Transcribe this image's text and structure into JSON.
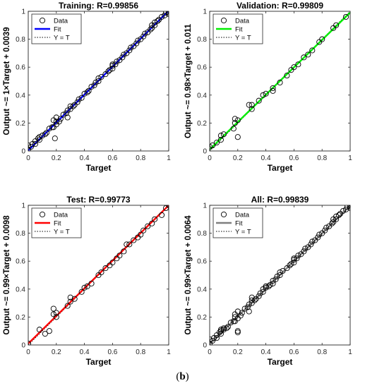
{
  "figure_label": {
    "open": "(",
    "letter": "b",
    "close": ")"
  },
  "chart_data": [
    {
      "type": "scatter",
      "title": "Training: R=0.99856",
      "xlabel": "Target",
      "ylabel": "Output ~= 1×Target + 0.0039",
      "xlim": [
        0,
        1
      ],
      "ylim": [
        0,
        1
      ],
      "xticks": [
        "0",
        "0.2",
        "0.4",
        "0.6",
        "0.8",
        "1"
      ],
      "yticks": [
        "0",
        "0.2",
        "0.4",
        "0.6",
        "0.8",
        "1"
      ],
      "legend": {
        "position": "top-left",
        "entries": [
          "Data",
          "Fit",
          "Y = T"
        ]
      },
      "fit_color": "#0000ff",
      "fit": {
        "slope": 1.0,
        "intercept": 0.0039
      },
      "series": [
        {
          "name": "Data",
          "x": [
            0,
            0,
            0.02,
            0.03,
            0.05,
            0.05,
            0.07,
            0.08,
            0.08,
            0.1,
            0.12,
            0.13,
            0.15,
            0.17,
            0.18,
            0.18,
            0.19,
            0.2,
            0.2,
            0.2,
            0.22,
            0.23,
            0.25,
            0.27,
            0.28,
            0.28,
            0.3,
            0.3,
            0.32,
            0.33,
            0.35,
            0.36,
            0.38,
            0.4,
            0.42,
            0.43,
            0.45,
            0.47,
            0.48,
            0.5,
            0.5,
            0.52,
            0.55,
            0.57,
            0.58,
            0.6,
            0.6,
            0.6,
            0.62,
            0.63,
            0.65,
            0.67,
            0.68,
            0.7,
            0.72,
            0.73,
            0.75,
            0.77,
            0.78,
            0.8,
            0.82,
            0.83,
            0.85,
            0.87,
            0.88,
            0.88,
            0.9,
            0.9,
            0.92,
            0.93,
            0.95,
            0.97,
            0.98,
            1,
            1,
            1
          ],
          "y": [
            0.01,
            0.04,
            0.03,
            0.05,
            0.05,
            0.07,
            0.09,
            0.08,
            0.1,
            0.11,
            0.12,
            0.13,
            0.16,
            0.17,
            0.17,
            0.22,
            0.09,
            0.19,
            0.21,
            0.24,
            0.21,
            0.23,
            0.26,
            0.27,
            0.29,
            0.24,
            0.3,
            0.32,
            0.32,
            0.33,
            0.35,
            0.37,
            0.38,
            0.41,
            0.42,
            0.43,
            0.46,
            0.47,
            0.49,
            0.5,
            0.52,
            0.53,
            0.55,
            0.57,
            0.58,
            0.59,
            0.61,
            0.62,
            0.62,
            0.64,
            0.65,
            0.67,
            0.69,
            0.7,
            0.72,
            0.74,
            0.75,
            0.77,
            0.79,
            0.8,
            0.82,
            0.84,
            0.85,
            0.87,
            0.88,
            0.9,
            0.9,
            0.92,
            0.93,
            0.94,
            0.96,
            0.97,
            0.99,
            0.98,
            1,
            0.99
          ]
        }
      ]
    },
    {
      "type": "scatter",
      "title": "Validation: R=0.99809",
      "xlabel": "Target",
      "ylabel": "Output ~= 0.98×Target + 0.011",
      "xlim": [
        0,
        1
      ],
      "ylim": [
        0,
        1
      ],
      "xticks": [
        "0",
        "0.2",
        "0.4",
        "0.6",
        "0.8",
        "1"
      ],
      "yticks": [
        "0",
        "0.2",
        "0.4",
        "0.6",
        "0.8",
        "1"
      ],
      "legend": {
        "position": "top-left",
        "entries": [
          "Data",
          "Fit",
          "Y = T"
        ]
      },
      "fit_color": "#00ee00",
      "fit": {
        "slope": 0.98,
        "intercept": 0.011
      },
      "series": [
        {
          "name": "Data",
          "x": [
            0,
            0.02,
            0.05,
            0.08,
            0.08,
            0.1,
            0.17,
            0.18,
            0.18,
            0.2,
            0.2,
            0.28,
            0.3,
            0.3,
            0.35,
            0.38,
            0.4,
            0.45,
            0.45,
            0.5,
            0.55,
            0.58,
            0.6,
            0.63,
            0.67,
            0.7,
            0.73,
            0.78,
            0.8,
            0.88,
            0.9,
            0.97
          ],
          "y": [
            0.03,
            0.04,
            0.06,
            0.08,
            0.11,
            0.12,
            0.16,
            0.2,
            0.23,
            0.1,
            0.22,
            0.33,
            0.3,
            0.33,
            0.36,
            0.4,
            0.41,
            0.45,
            0.43,
            0.49,
            0.54,
            0.58,
            0.6,
            0.62,
            0.67,
            0.69,
            0.72,
            0.78,
            0.8,
            0.88,
            0.9,
            0.96
          ]
        }
      ]
    },
    {
      "type": "scatter",
      "title": "Test: R=0.99773",
      "xlabel": "Target",
      "ylabel": "Output ~= 0.99×Target + 0.0098",
      "xlim": [
        0,
        1
      ],
      "ylim": [
        0,
        1
      ],
      "xticks": [
        "0",
        "0.2",
        "0.4",
        "0.6",
        "0.8",
        "1"
      ],
      "yticks": [
        "0",
        "0.2",
        "0.4",
        "0.6",
        "0.8",
        "1"
      ],
      "legend": {
        "position": "top-left",
        "entries": [
          "Data",
          "Fit",
          "Y = T"
        ]
      },
      "fit_color": "#ff0000",
      "fit": {
        "slope": 0.99,
        "intercept": 0.0098
      },
      "series": [
        {
          "name": "Data",
          "x": [
            0,
            0.08,
            0.12,
            0.15,
            0.18,
            0.18,
            0.2,
            0.2,
            0.28,
            0.3,
            0.3,
            0.33,
            0.38,
            0.4,
            0.42,
            0.45,
            0.5,
            0.52,
            0.55,
            0.58,
            0.6,
            0.63,
            0.65,
            0.68,
            0.7,
            0.72,
            0.75,
            0.78,
            0.8,
            0.82,
            0.85,
            0.88,
            0.9,
            0.95,
            0.98,
            1
          ],
          "y": [
            0.01,
            0.11,
            0.08,
            0.1,
            0.22,
            0.26,
            0.2,
            0.23,
            0.28,
            0.31,
            0.34,
            0.33,
            0.38,
            0.41,
            0.42,
            0.44,
            0.5,
            0.52,
            0.55,
            0.57,
            0.59,
            0.62,
            0.64,
            0.67,
            0.72,
            0.72,
            0.75,
            0.77,
            0.79,
            0.82,
            0.85,
            0.87,
            0.9,
            0.93,
            0.98,
            1
          ]
        }
      ]
    },
    {
      "type": "scatter",
      "title": "All: R=0.99839",
      "xlabel": "Target",
      "ylabel": "Output ~= 0.99×Target + 0.0064",
      "xlim": [
        0,
        1
      ],
      "ylim": [
        0,
        1
      ],
      "xticks": [
        "0",
        "0.2",
        "0.4",
        "0.6",
        "0.8",
        "1"
      ],
      "yticks": [
        "0",
        "0.2",
        "0.4",
        "0.6",
        "0.8",
        "1"
      ],
      "legend": {
        "position": "top-left",
        "entries": [
          "Data",
          "Fit",
          "Y = T"
        ]
      },
      "fit_color": "#7f7f7f",
      "fit": {
        "slope": 0.99,
        "intercept": 0.0064
      },
      "series": [
        {
          "name": "Data",
          "x": [
            0,
            0,
            0.02,
            0.03,
            0.05,
            0.05,
            0.07,
            0.08,
            0.08,
            0.08,
            0.1,
            0.1,
            0.12,
            0.13,
            0.15,
            0.17,
            0.18,
            0.18,
            0.18,
            0.2,
            0.2,
            0.2,
            0.2,
            0.22,
            0.23,
            0.25,
            0.27,
            0.28,
            0.28,
            0.3,
            0.3,
            0.3,
            0.32,
            0.33,
            0.35,
            0.36,
            0.38,
            0.38,
            0.4,
            0.4,
            0.42,
            0.43,
            0.45,
            0.45,
            0.47,
            0.48,
            0.5,
            0.5,
            0.52,
            0.55,
            0.57,
            0.58,
            0.6,
            0.6,
            0.6,
            0.62,
            0.63,
            0.65,
            0.67,
            0.68,
            0.7,
            0.72,
            0.73,
            0.75,
            0.77,
            0.78,
            0.8,
            0.82,
            0.83,
            0.85,
            0.87,
            0.88,
            0.88,
            0.9,
            0.9,
            0.92,
            0.93,
            0.95,
            0.97,
            0.98,
            1,
            1,
            1
          ],
          "y": [
            0.01,
            0.04,
            0.03,
            0.05,
            0.05,
            0.07,
            0.09,
            0.08,
            0.1,
            0.11,
            0.11,
            0.12,
            0.12,
            0.13,
            0.16,
            0.17,
            0.17,
            0.22,
            0.2,
            0.09,
            0.19,
            0.24,
            0.1,
            0.21,
            0.23,
            0.26,
            0.27,
            0.29,
            0.24,
            0.3,
            0.32,
            0.34,
            0.32,
            0.33,
            0.35,
            0.37,
            0.38,
            0.4,
            0.41,
            0.42,
            0.42,
            0.43,
            0.46,
            0.44,
            0.47,
            0.49,
            0.5,
            0.52,
            0.53,
            0.55,
            0.57,
            0.58,
            0.59,
            0.61,
            0.62,
            0.62,
            0.64,
            0.65,
            0.67,
            0.69,
            0.7,
            0.72,
            0.74,
            0.75,
            0.77,
            0.79,
            0.8,
            0.82,
            0.84,
            0.85,
            0.87,
            0.88,
            0.9,
            0.9,
            0.92,
            0.93,
            0.94,
            0.96,
            0.97,
            0.99,
            0.98,
            1,
            0.99
          ]
        }
      ]
    }
  ]
}
